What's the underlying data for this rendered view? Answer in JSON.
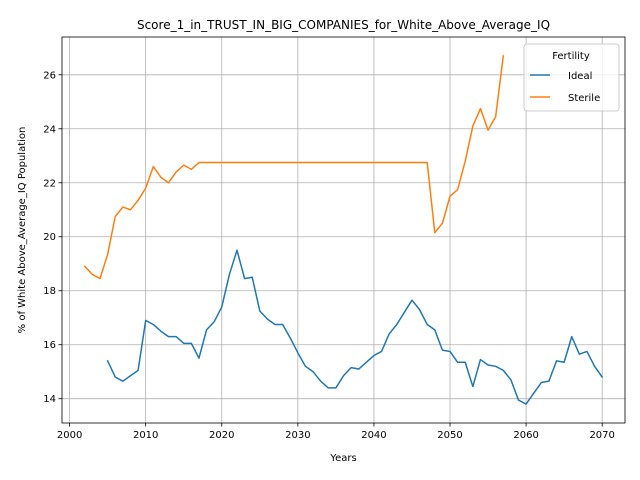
{
  "chart_data": {
    "type": "line",
    "title": "Score_1_in_TRUST_IN_BIG_COMPANIES_for_White_Above_Average_IQ",
    "xlabel": "Years",
    "ylabel": "% of White Above_Average_IQ Population",
    "xlim": [
      1999,
      2073
    ],
    "ylim": [
      13.1,
      27.4
    ],
    "xticks": [
      2000,
      2010,
      2020,
      2030,
      2040,
      2050,
      2060,
      2070
    ],
    "yticks": [
      14,
      16,
      18,
      20,
      22,
      24,
      26
    ],
    "grid": true,
    "legend": {
      "title": "Fertility",
      "placement": "top-right"
    },
    "series": [
      {
        "name": "Ideal",
        "color": "#1f77b4",
        "x": [
          2005,
          2006,
          2007,
          2008,
          2009,
          2010,
          2011,
          2012,
          2013,
          2014,
          2015,
          2016,
          2017,
          2018,
          2019,
          2020,
          2021,
          2022,
          2023,
          2024,
          2025,
          2026,
          2027,
          2028,
          2029,
          2030,
          2031,
          2032,
          2033,
          2034,
          2035,
          2036,
          2037,
          2038,
          2039,
          2040,
          2041,
          2042,
          2043,
          2044,
          2045,
          2046,
          2047,
          2048,
          2049,
          2050,
          2051,
          2052,
          2053,
          2054,
          2055,
          2056,
          2057,
          2058,
          2059,
          2060,
          2061,
          2062,
          2063,
          2064,
          2065,
          2066,
          2067,
          2068,
          2069,
          2070
        ],
        "y": [
          15.4,
          14.8,
          14.65,
          14.85,
          15.05,
          16.9,
          16.75,
          16.5,
          16.3,
          16.3,
          16.05,
          16.05,
          15.5,
          16.55,
          16.85,
          17.4,
          18.6,
          19.5,
          18.45,
          18.5,
          17.25,
          16.95,
          16.75,
          16.75,
          16.25,
          15.7,
          15.2,
          15.0,
          14.65,
          14.4,
          14.4,
          14.85,
          15.15,
          15.1,
          15.35,
          15.6,
          15.75,
          16.4,
          16.75,
          17.2,
          17.65,
          17.3,
          16.75,
          16.55,
          15.8,
          15.75,
          15.35,
          15.35,
          14.45,
          15.45,
          15.25,
          15.2,
          15.05,
          14.7,
          13.95,
          13.8,
          14.2,
          14.6,
          14.65,
          15.4,
          15.35,
          16.3,
          15.65,
          15.75,
          15.2,
          14.8
        ]
      },
      {
        "name": "Sterile",
        "color": "#ff7f0e",
        "x": [
          2002,
          2003,
          2004,
          2005,
          2006,
          2007,
          2008,
          2009,
          2010,
          2011,
          2012,
          2013,
          2014,
          2015,
          2016,
          2017,
          2018,
          2019,
          2020,
          2021,
          2022,
          2023,
          2024,
          2025,
          2026,
          2027,
          2028,
          2029,
          2030,
          2031,
          2032,
          2033,
          2034,
          2035,
          2036,
          2037,
          2038,
          2039,
          2040,
          2041,
          2042,
          2043,
          2044,
          2045,
          2046,
          2047,
          2048,
          2049,
          2050,
          2051,
          2052,
          2053,
          2054,
          2055,
          2056,
          2057
        ],
        "y": [
          18.9,
          18.6,
          18.45,
          19.35,
          20.75,
          21.1,
          21.0,
          21.35,
          21.8,
          22.6,
          22.2,
          22.0,
          22.4,
          22.65,
          22.5,
          22.75,
          22.75,
          22.75,
          22.75,
          22.75,
          22.75,
          22.75,
          22.75,
          22.75,
          22.75,
          22.75,
          22.75,
          22.75,
          22.75,
          22.75,
          22.75,
          22.75,
          22.75,
          22.75,
          22.75,
          22.75,
          22.75,
          22.75,
          22.75,
          22.75,
          22.75,
          22.75,
          22.75,
          22.75,
          22.75,
          22.75,
          20.15,
          20.5,
          21.5,
          21.75,
          22.8,
          24.1,
          24.75,
          23.95,
          24.45,
          26.7
        ]
      }
    ]
  }
}
